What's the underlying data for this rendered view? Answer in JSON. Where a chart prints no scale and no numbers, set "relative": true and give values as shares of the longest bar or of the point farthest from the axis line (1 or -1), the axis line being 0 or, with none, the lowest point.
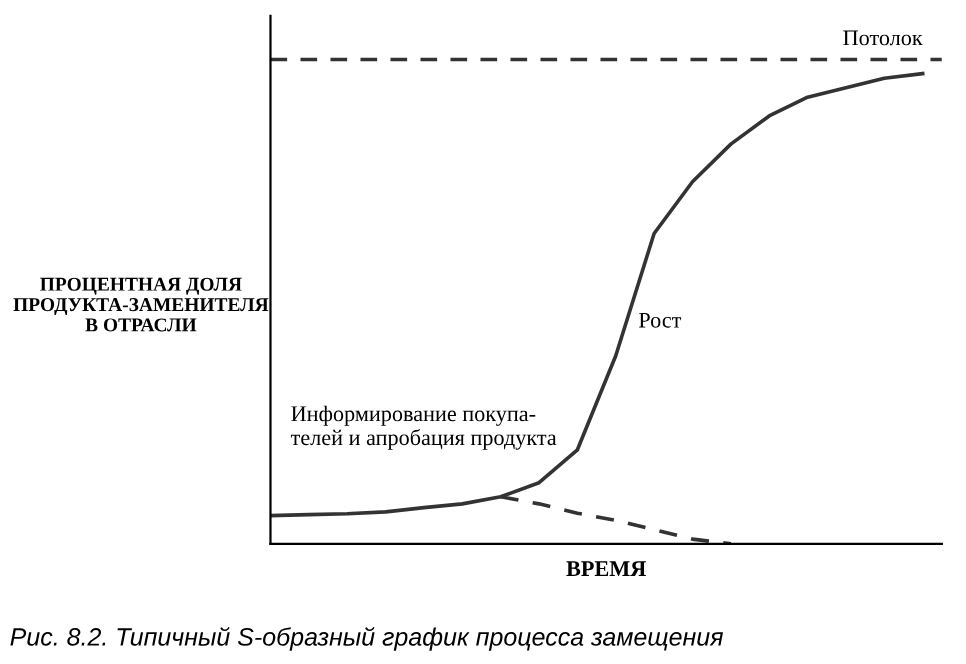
{
  "chart_data": {
    "type": "line",
    "relative": true,
    "xlabel": "ВРЕМЯ",
    "ylabel": "ПРОЦЕНТНАЯ ДОЛЯ\nПРОДУКТА-ЗАМЕНИТЕЛЯ\nВ ОТРАСЛИ",
    "categories": [
      null,
      null,
      null,
      null,
      null,
      null,
      null,
      null,
      null,
      null,
      null,
      null,
      null,
      null,
      null,
      null,
      null,
      null
    ],
    "series": [
      {
        "color": "#333333",
        "line_style": "solid",
        "values": [
          0.06,
          0.062,
          0.064,
          0.068,
          0.077,
          0.085,
          0.1,
          0.13,
          0.2,
          0.4,
          0.66,
          0.77,
          0.85,
          0.91,
          0.95,
          0.97,
          0.99,
          1.0
        ]
      },
      {
        "color": "#333333",
        "line_style": "dashed",
        "values": [
          null,
          null,
          null,
          null,
          null,
          null,
          0.1,
          0.085,
          0.065,
          0.05,
          0.03,
          0.01,
          0,
          null,
          null,
          null,
          null,
          null
        ]
      }
    ],
    "ref_lines": [
      {
        "axis": "y",
        "value": 1.03,
        "label": "Потолок",
        "color": "#333333",
        "line_style": "dashed"
      }
    ],
    "annotations": [
      "Рост",
      "Информирование покупа-\nтелей и апробация продукта",
      "Рис. 8.2. Типичный S-образный график процесса замещения"
    ],
    "grid": false,
    "legend": false,
    "marker": "none"
  }
}
